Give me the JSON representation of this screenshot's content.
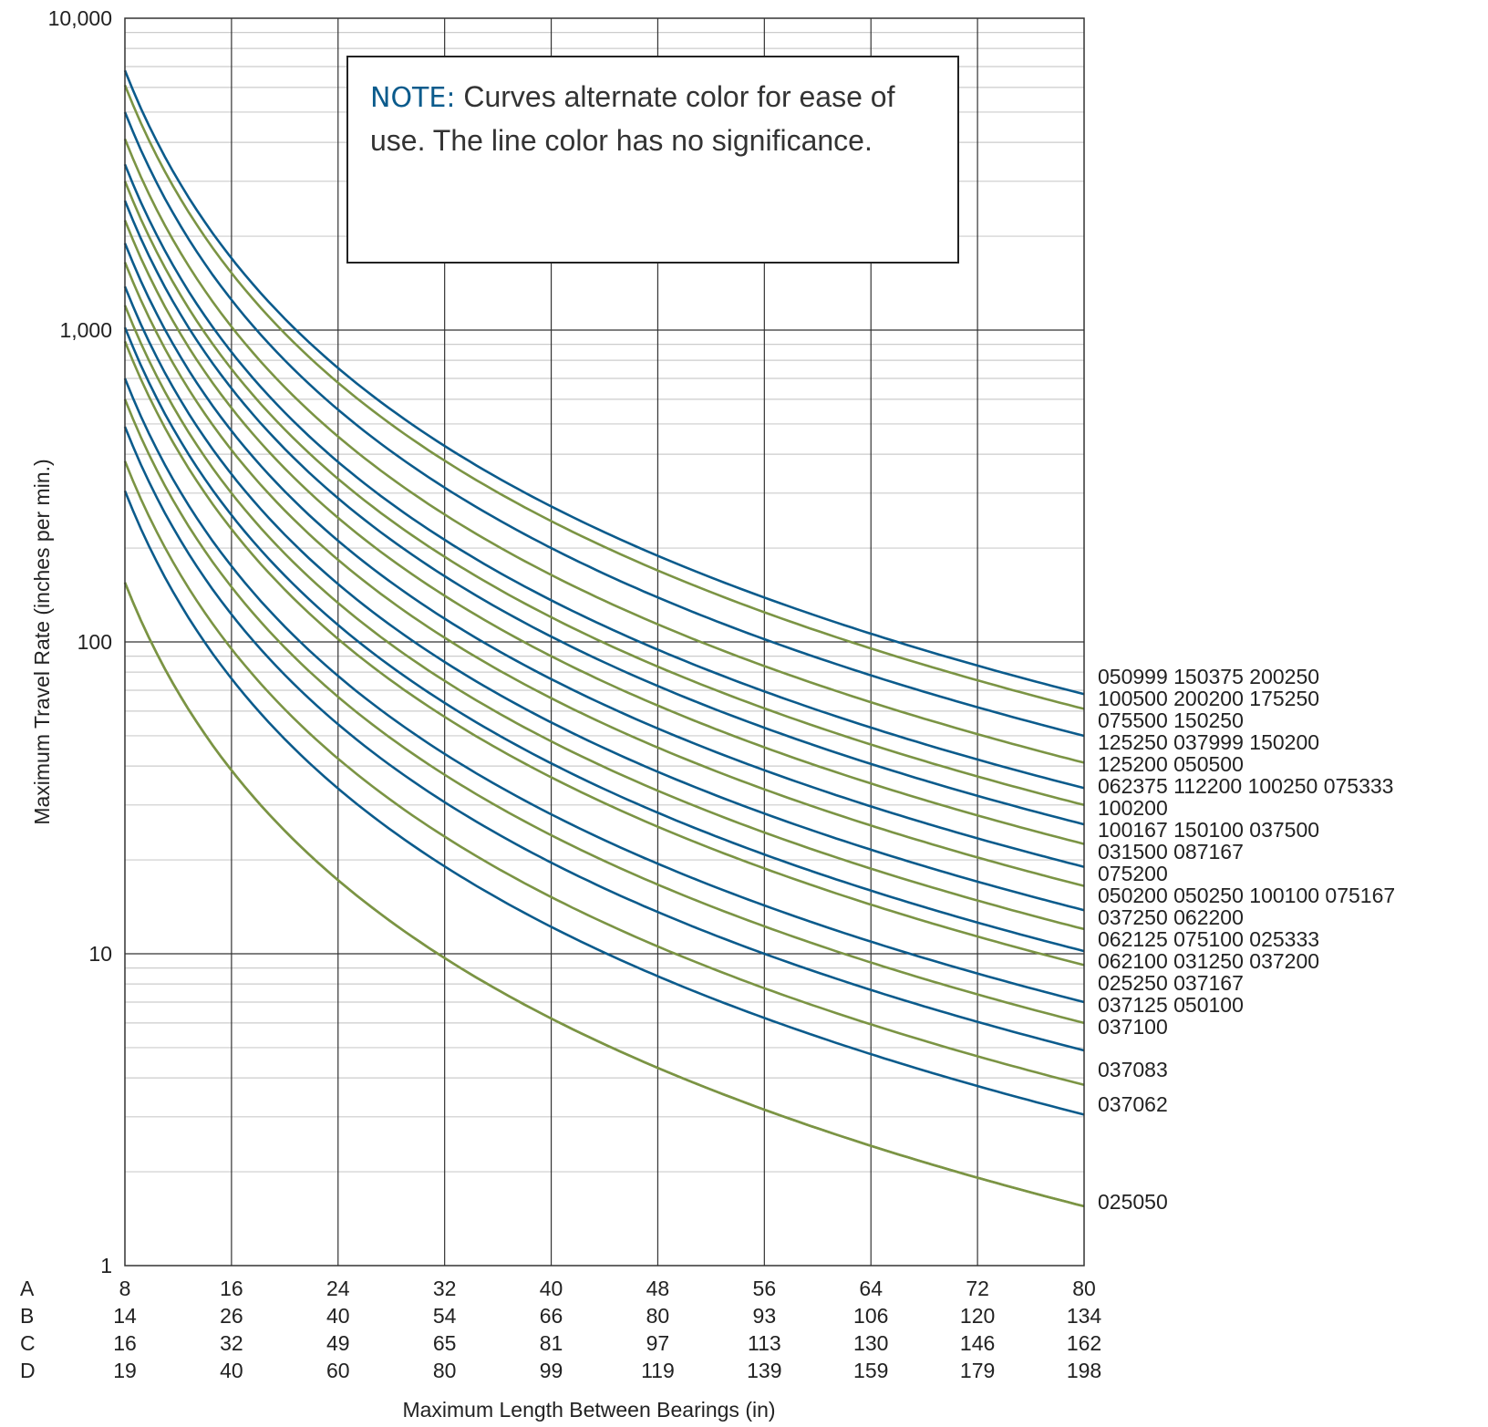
{
  "colors": {
    "blue": "#0b5b8c",
    "green": "#7b9444",
    "grid": "#cccccc",
    "major": "#333333"
  },
  "note": {
    "label": "NOTE:",
    "text": " Curves alternate color for ease of use. The line color has no significance."
  },
  "chart_data": {
    "type": "line",
    "title": "",
    "ylabel": "Maximum Travel Rate (inches per min.)",
    "xlabel": "Maximum Length Between Bearings (in)",
    "yscale": "log",
    "ylim": [
      1,
      10000
    ],
    "y_ticks": [
      "1",
      "10",
      "100",
      "1,000",
      "10,000"
    ],
    "xlim": [
      8,
      80
    ],
    "grid": true,
    "x_scales": [
      {
        "row": "A",
        "ticks": [
          "8",
          "16",
          "24",
          "32",
          "40",
          "48",
          "56",
          "64",
          "72",
          "80"
        ]
      },
      {
        "row": "B",
        "ticks": [
          "14",
          "26",
          "40",
          "54",
          "66",
          "80",
          "93",
          "106",
          "120",
          "134"
        ]
      },
      {
        "row": "C",
        "ticks": [
          "16",
          "32",
          "49",
          "65",
          "81",
          "97",
          "113",
          "130",
          "146",
          "162"
        ]
      },
      {
        "row": "D",
        "ticks": [
          "19",
          "40",
          "60",
          "80",
          "99",
          "119",
          "139",
          "159",
          "179",
          "198"
        ]
      }
    ],
    "series": [
      {
        "label": "050999  150375  200250",
        "color": "blue",
        "y_at_80": 68
      },
      {
        "label": "100500  200200  175250",
        "color": "green",
        "y_at_80": 61
      },
      {
        "label": "075500  150250",
        "color": "blue",
        "y_at_80": 50
      },
      {
        "label": "125250  037999  150200",
        "color": "green",
        "y_at_80": 41
      },
      {
        "label": "125200  050500",
        "color": "blue",
        "y_at_80": 34
      },
      {
        "label": "062375  112200  100250  075333",
        "color": "green",
        "y_at_80": 30
      },
      {
        "label": "100200",
        "color": "blue",
        "y_at_80": 26
      },
      {
        "label": "100167  150100  037500",
        "color": "green",
        "y_at_80": 22.5
      },
      {
        "label": "031500  087167",
        "color": "blue",
        "y_at_80": 19
      },
      {
        "label": "075200",
        "color": "green",
        "y_at_80": 16.5
      },
      {
        "label": "050200  050250  100100  075167",
        "color": "blue",
        "y_at_80": 13.8
      },
      {
        "label": "037250  062200",
        "color": "green",
        "y_at_80": 12
      },
      {
        "label": "062125  075100  025333",
        "color": "blue",
        "y_at_80": 10.2
      },
      {
        "label": "062100  031250  037200",
        "color": "green",
        "y_at_80": 9.2
      },
      {
        "label": "",
        "color": "blue",
        "y_at_80": 7.0
      },
      {
        "label": "025250  037167",
        "color": "green",
        "y_at_80": 6.0
      },
      {
        "label": "037125  050100",
        "color": "blue",
        "y_at_80": 4.9
      },
      {
        "label": "037100",
        "color": "green",
        "y_at_80": 3.8
      },
      {
        "label": "037083",
        "color": "blue",
        "y_at_80": 3.05
      },
      {
        "label": "037062",
        "color": "green",
        "y_at_80": 1.55
      },
      {
        "label": "025050",
        "color": "green",
        "y_at_80": 1.55
      }
    ]
  }
}
